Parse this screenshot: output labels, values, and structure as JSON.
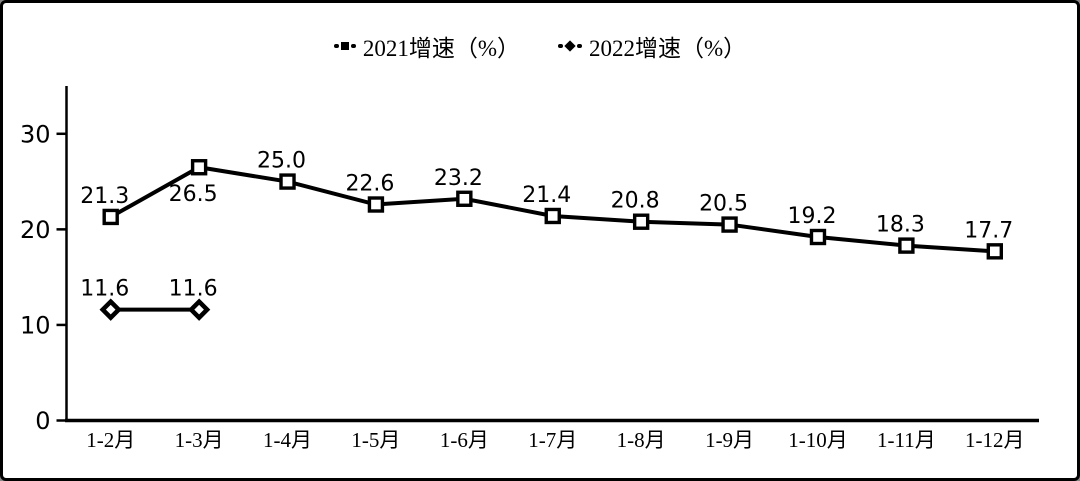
{
  "legend": {
    "items": [
      {
        "label": "2021增速（%）",
        "marker": "square"
      },
      {
        "label": "2022增速（%）",
        "marker": "diamond"
      }
    ]
  },
  "chart_data": {
    "type": "line",
    "title": "",
    "xlabel": "",
    "ylabel": "",
    "categories": [
      "1-2月",
      "1-3月",
      "1-4月",
      "1-5月",
      "1-6月",
      "1-7月",
      "1-8月",
      "1-9月",
      "1-10月",
      "1-11月",
      "1-12月"
    ],
    "series": [
      {
        "name": "2021增速（%）",
        "marker": "square",
        "values": [
          21.3,
          26.5,
          25.0,
          22.6,
          23.2,
          21.4,
          20.8,
          20.5,
          19.2,
          18.3,
          17.7
        ],
        "label_positions": [
          "above",
          "below",
          "above",
          "above",
          "above",
          "above",
          "above",
          "above",
          "above",
          "above",
          "above"
        ]
      },
      {
        "name": "2022增速（%）",
        "marker": "diamond",
        "values": [
          11.6,
          11.6,
          null,
          null,
          null,
          null,
          null,
          null,
          null,
          null,
          null
        ],
        "label_positions": [
          "above",
          "above",
          null,
          null,
          null,
          null,
          null,
          null,
          null,
          null,
          null
        ]
      }
    ],
    "yticks": [
      0,
      10,
      20,
      30
    ],
    "ylim": [
      0,
      35
    ],
    "grid": false,
    "data_labels": true,
    "legend_position": "top-center",
    "colors": {
      "line": "#000000",
      "marker_fill": "#ffffff",
      "background": "#ffffff",
      "text": "#000000"
    }
  }
}
